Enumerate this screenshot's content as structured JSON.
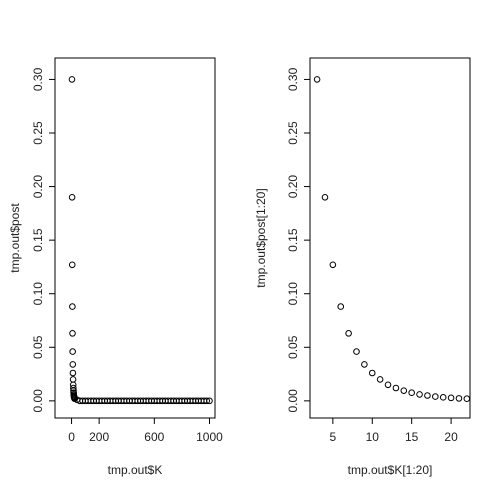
{
  "chart_data": [
    {
      "type": "scatter",
      "x_label": "tmp.out$K",
      "y_label": "tmp.out$post",
      "x": [
        3,
        4,
        5,
        6,
        7,
        8,
        9,
        10,
        11,
        12,
        13,
        14,
        15,
        16,
        17,
        18,
        19,
        20,
        21,
        22,
        40,
        60,
        80,
        100,
        120,
        140,
        160,
        180,
        200,
        220,
        240,
        260,
        280,
        300,
        320,
        340,
        360,
        380,
        400,
        420,
        440,
        460,
        480,
        500,
        520,
        540,
        560,
        580,
        600,
        620,
        640,
        660,
        680,
        700,
        720,
        740,
        760,
        780,
        800,
        820,
        840,
        860,
        880,
        900,
        920,
        940,
        960,
        980,
        1000
      ],
      "values": [
        0.3,
        0.19,
        0.127,
        0.088,
        0.063,
        0.046,
        0.034,
        0.026,
        0.02,
        0.015,
        0.012,
        0.0095,
        0.0076,
        0.006,
        0.005,
        0.004,
        0.0033,
        0.0028,
        0.0023,
        0.002,
        0.001,
        0,
        0,
        0,
        0,
        0,
        0,
        0,
        0,
        0,
        0,
        0,
        0,
        0,
        0,
        0,
        0,
        0,
        0,
        0,
        0,
        0,
        0,
        0,
        0,
        0,
        0,
        0,
        0,
        0,
        0,
        0,
        0,
        0,
        0,
        0,
        0,
        0,
        0,
        0,
        0,
        0,
        0,
        0,
        0,
        0,
        0,
        0,
        0
      ],
      "color": "#000000",
      "xlim": [
        -120,
        1040
      ],
      "ylim": [
        -0.016,
        0.32
      ],
      "xticks": [
        0,
        200,
        600,
        1000
      ],
      "yticks": [
        {
          "value": 0,
          "label": "0.00"
        },
        {
          "value": 0.05,
          "label": "0.05"
        },
        {
          "value": 0.1,
          "label": "0.10"
        },
        {
          "value": 0.15,
          "label": "0.15"
        },
        {
          "value": 0.2,
          "label": "0.20"
        },
        {
          "value": 0.25,
          "label": "0.25"
        },
        {
          "value": 0.3,
          "label": "0.30"
        }
      ]
    },
    {
      "type": "scatter",
      "x_label": "tmp.out$K[1:20]",
      "y_label": "tmp.out$post[1:20]",
      "x": [
        3,
        4,
        5,
        6,
        7,
        8,
        9,
        10,
        11,
        12,
        13,
        14,
        15,
        16,
        17,
        18,
        19,
        20,
        21,
        22
      ],
      "values": [
        0.3,
        0.19,
        0.127,
        0.088,
        0.063,
        0.046,
        0.034,
        0.026,
        0.02,
        0.015,
        0.012,
        0.0095,
        0.0076,
        0.006,
        0.005,
        0.004,
        0.0033,
        0.0028,
        0.0023,
        0.002
      ],
      "color": "#000000",
      "xlim": [
        2.1,
        22.4
      ],
      "ylim": [
        -0.016,
        0.32
      ],
      "xticks": [
        5,
        10,
        15,
        20
      ],
      "yticks": [
        {
          "value": 0,
          "label": "0.00"
        },
        {
          "value": 0.05,
          "label": "0.05"
        },
        {
          "value": 0.1,
          "label": "0.10"
        },
        {
          "value": 0.15,
          "label": "0.15"
        },
        {
          "value": 0.2,
          "label": "0.20"
        },
        {
          "value": 0.25,
          "label": "0.25"
        },
        {
          "value": 0.3,
          "label": "0.30"
        }
      ]
    }
  ]
}
